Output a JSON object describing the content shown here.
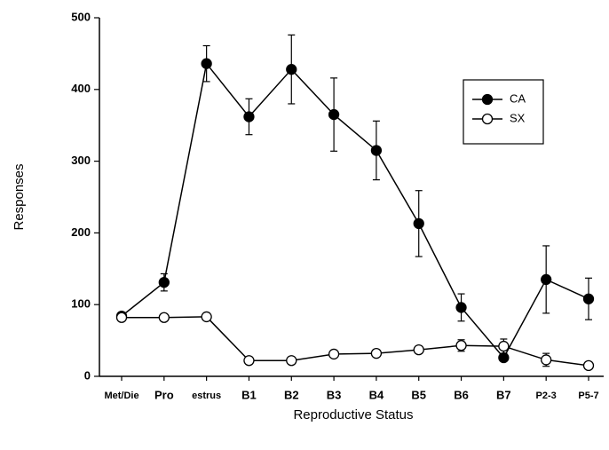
{
  "chart_data": {
    "type": "line",
    "xlabel": "Reproductive Status",
    "ylabel": "Responses",
    "categories": [
      "Met/Die",
      "Pro",
      "estrus",
      "B1",
      "B2",
      "B3",
      "B4",
      "B5",
      "B6",
      "B7",
      "P2-3",
      "P5-7"
    ],
    "series": [
      {
        "name": "CA",
        "color": "#000000",
        "marker": "filled",
        "values": [
          84,
          131,
          436,
          362,
          428,
          365,
          315,
          213,
          96,
          26,
          135,
          108
        ],
        "errors": [
          3,
          12,
          25,
          25,
          48,
          51,
          41,
          46,
          19,
          2,
          47,
          29
        ]
      },
      {
        "name": "SX",
        "color": "#000000",
        "marker": "open",
        "values": [
          82,
          82,
          83,
          22,
          22,
          31,
          32,
          37,
          43,
          42,
          23,
          15
        ],
        "errors": [
          3,
          1,
          1,
          5,
          2,
          2,
          2,
          5,
          8,
          10,
          9,
          2
        ]
      }
    ],
    "ylim": [
      0,
      500
    ],
    "yticks": [
      0,
      100,
      200,
      300,
      400,
      500
    ],
    "legend": "upper-right"
  }
}
